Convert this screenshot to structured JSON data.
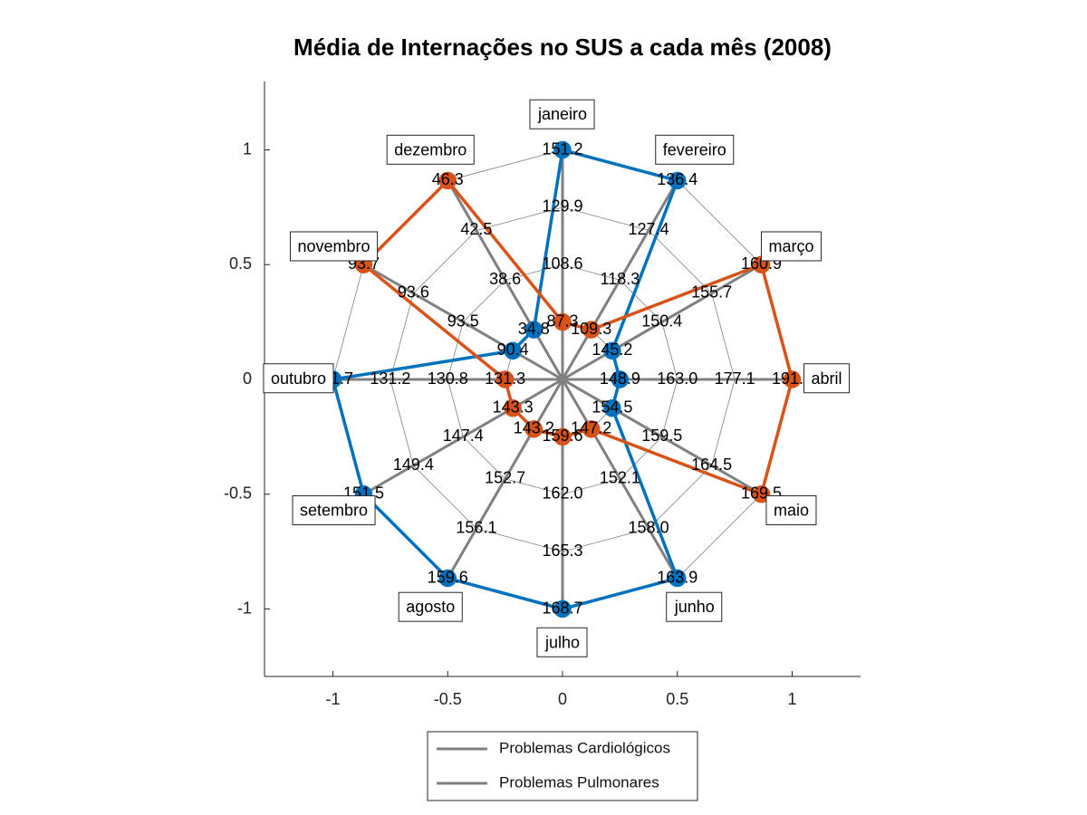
{
  "chart_data": {
    "type": "radar",
    "title": "Média de Internações no SUS a cada mês (2008)",
    "categories": [
      "janeiro",
      "fevereiro",
      "março",
      "abril",
      "maio",
      "junho",
      "julho",
      "agosto",
      "setembro",
      "outubro",
      "novembro",
      "dezembro"
    ],
    "axis_ticks": [
      -1,
      -0.5,
      0,
      0.5,
      1
    ],
    "axis_tick_labels": [
      "-1",
      "-0.5",
      "0",
      "0.5",
      "1"
    ],
    "xlim": [
      -1.3,
      1.3
    ],
    "ylim": [
      -1.3,
      1.3
    ],
    "rings": 4,
    "ring_labels": [
      [
        "108.6",
        "129.9",
        "151.2"
      ],
      [
        "118.3",
        "127.4",
        "136.4"
      ],
      [
        "150.4",
        "155.7",
        "160.9"
      ],
      [
        "163.0",
        "177.1",
        "191.2"
      ],
      [
        "159.5",
        "164.5",
        "169.5"
      ],
      [
        "152.1",
        "158.0",
        "163.9"
      ],
      [
        "162.0",
        "165.3",
        "168.7"
      ],
      [
        "152.7",
        "156.1",
        "159.6"
      ],
      [
        "147.4",
        "149.4",
        "151.5"
      ],
      [
        "130.8",
        "131.2",
        "131.7"
      ],
      [
        "93.5",
        "93.6",
        "93.7"
      ],
      [
        "38.6",
        "42.5",
        "46.3"
      ]
    ],
    "inner_labels": [
      "87.3",
      "109.3",
      "145.2",
      "148.9",
      "154.5",
      "147.2",
      "159.6",
      "143.2",
      "143.3",
      "131.3",
      "90.4",
      "34.8"
    ],
    "series": [
      {
        "name": "Problemas Cardiológicos",
        "color": "#0072BD",
        "radii": [
          1.0,
          1.0,
          0.25,
          0.25,
          0.25,
          1.0,
          1.0,
          1.0,
          1.0,
          1.0,
          0.25,
          0.25
        ]
      },
      {
        "name": "Problemas Pulmonares",
        "color": "#D95319",
        "radii": [
          0.25,
          0.25,
          1.0,
          1.0,
          1.0,
          0.25,
          0.25,
          0.25,
          0.25,
          0.25,
          1.0,
          1.0
        ]
      }
    ],
    "legend": {
      "position": "bottom",
      "entries": [
        "Problemas Cardiológicos",
        "Problemas Pulmonares"
      ],
      "line_color": "#808080"
    },
    "spoke_color": "#808080",
    "grid_color": "#808080"
  }
}
